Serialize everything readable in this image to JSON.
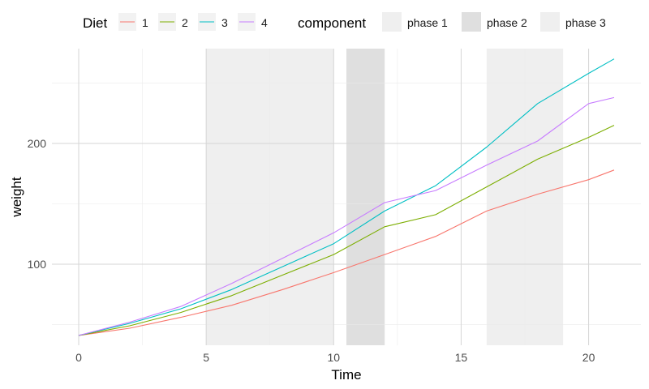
{
  "chart_data": {
    "type": "line",
    "title": "",
    "xlabel": "Time",
    "ylabel": "weight",
    "xlim": [
      -1.05,
      22.05
    ],
    "ylim": [
      32.9,
      278.5
    ],
    "x_ticks": [
      0,
      5,
      10,
      15,
      20
    ],
    "y_ticks": [
      100,
      200
    ],
    "x": [
      0,
      2,
      4,
      6,
      8,
      10,
      12,
      14,
      16,
      18,
      20,
      21
    ],
    "series": [
      {
        "name": "1",
        "color": "#F8766D",
        "values": [
          41,
          47,
          56,
          66,
          79,
          93,
          108,
          123,
          144,
          158,
          170,
          178
        ]
      },
      {
        "name": "2",
        "color": "#7CAE00",
        "values": [
          41,
          49,
          60,
          74,
          91,
          108,
          131,
          141,
          164,
          187,
          205,
          215
        ]
      },
      {
        "name": "3",
        "color": "#00BFC4",
        "values": [
          41,
          51,
          63,
          79,
          98,
          117,
          144,
          165,
          197,
          233,
          258,
          270
        ]
      },
      {
        "name": "4",
        "color": "#C77CFF",
        "values": [
          41,
          52,
          65,
          84,
          105,
          126,
          151,
          161,
          182,
          202,
          233,
          238
        ]
      }
    ],
    "phases": [
      {
        "name": "phase 1",
        "start": 5,
        "end": 10,
        "color": "#EFEFEF"
      },
      {
        "name": "phase 2",
        "start": 10.5,
        "end": 12,
        "color": "#DFDFDF"
      },
      {
        "name": "phase 3",
        "start": 16,
        "end": 19,
        "color": "#EFEFEF"
      }
    ],
    "grid": true,
    "legend_position": "top",
    "legend": {
      "diet_title": "Diet",
      "component_title": "component"
    }
  }
}
